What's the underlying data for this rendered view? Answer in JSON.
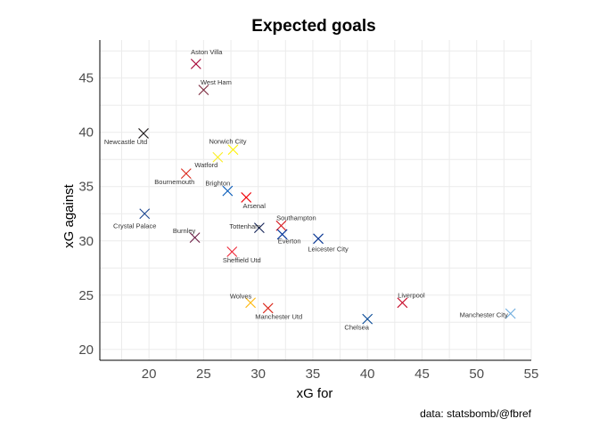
{
  "chart_data": {
    "type": "scatter",
    "title": "Expected goals",
    "xlabel": "xG for",
    "ylabel": "xG against",
    "caption": "data: statsbomb/@fbref",
    "xlim": [
      15.5,
      55
    ],
    "ylim": [
      19,
      48.5
    ],
    "xticks": [
      20,
      25,
      30,
      35,
      40,
      45,
      50,
      55
    ],
    "yticks": [
      20,
      25,
      30,
      35,
      40,
      45
    ],
    "grid": true,
    "marker": "x",
    "points": [
      {
        "team": "Aston Villa",
        "x": 24.3,
        "y": 46.3,
        "color": "#a50034"
      },
      {
        "team": "West Ham",
        "x": 25.0,
        "y": 43.9,
        "color": "#7a263a"
      },
      {
        "team": "Newcastle Utd",
        "x": 19.5,
        "y": 39.9,
        "color": "#241f20"
      },
      {
        "team": "Norwich City",
        "x": 27.7,
        "y": 38.4,
        "color": "#fff200"
      },
      {
        "team": "Watford",
        "x": 26.3,
        "y": 37.7,
        "color": "#fbee23"
      },
      {
        "team": "Bournemouth",
        "x": 23.4,
        "y": 36.2,
        "color": "#da291c"
      },
      {
        "team": "Brighton",
        "x": 27.2,
        "y": 34.6,
        "color": "#0057b8"
      },
      {
        "team": "Arsenal",
        "x": 28.9,
        "y": 34.0,
        "color": "#ef0107"
      },
      {
        "team": "Crystal Palace",
        "x": 19.6,
        "y": 32.5,
        "color": "#1b458f"
      },
      {
        "team": "Southampton",
        "x": 32.1,
        "y": 31.4,
        "color": "#d71920"
      },
      {
        "team": "Tottenham",
        "x": 30.1,
        "y": 31.2,
        "color": "#132257"
      },
      {
        "team": "Everton",
        "x": 32.2,
        "y": 30.6,
        "color": "#003399"
      },
      {
        "team": "Burnley",
        "x": 24.2,
        "y": 30.3,
        "color": "#6c1d45"
      },
      {
        "team": "Leicester City",
        "x": 35.5,
        "y": 30.2,
        "color": "#003090"
      },
      {
        "team": "Sheffield Utd",
        "x": 27.6,
        "y": 29.0,
        "color": "#ee2737"
      },
      {
        "team": "Wolves",
        "x": 29.3,
        "y": 24.3,
        "color": "#fdb913"
      },
      {
        "team": "Manchester Utd",
        "x": 30.9,
        "y": 23.8,
        "color": "#da291c"
      },
      {
        "team": "Liverpool",
        "x": 43.2,
        "y": 24.3,
        "color": "#c8102e"
      },
      {
        "team": "Chelsea",
        "x": 40.0,
        "y": 22.8,
        "color": "#034694"
      },
      {
        "team": "Manchester City",
        "x": 53.1,
        "y": 23.3,
        "color": "#6cabdd"
      }
    ]
  }
}
